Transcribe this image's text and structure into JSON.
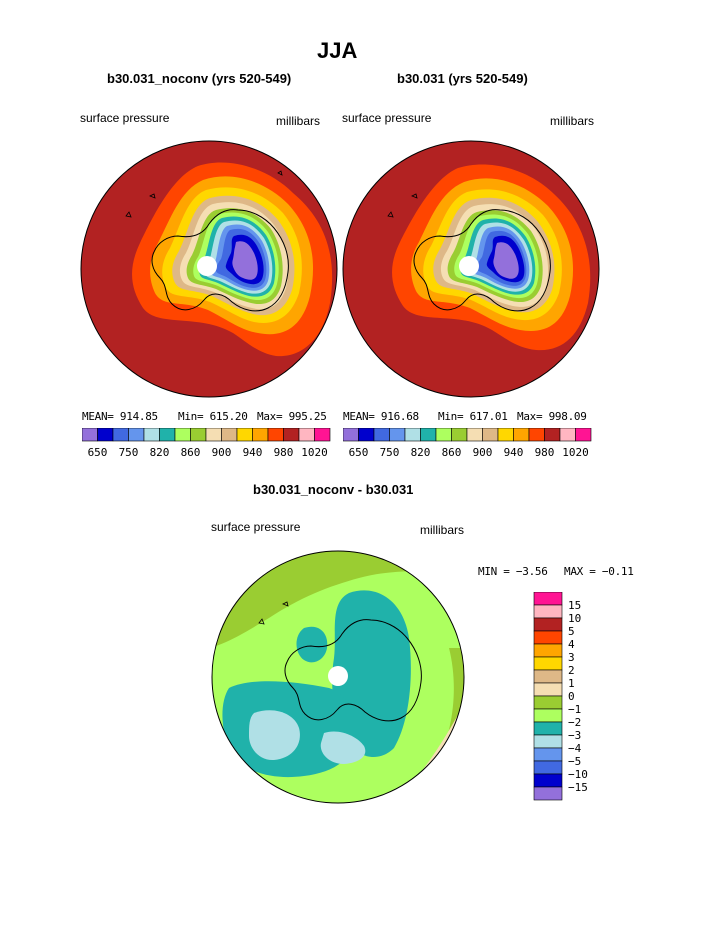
{
  "figure": {
    "title": "JJA"
  },
  "colors": {
    "cmap_full": [
      "#9370DB",
      "#0000CD",
      "#4169E1",
      "#6495ED",
      "#B0E0E6",
      "#20B2AA",
      "#ADFF5F",
      "#9ACD32",
      "#F5DEB3",
      "#DEB887",
      "#FFD700",
      "#FFA500",
      "#FF4500",
      "#B22222",
      "#FFB6C1",
      "#FF1493"
    ],
    "cmap_diff": [
      "#9370DB",
      "#0000CD",
      "#4169E1",
      "#6495ED",
      "#B0E0E6",
      "#20B2AA",
      "#ADFF5F",
      "#9ACD32",
      "#F5DEB3",
      "#DEB887",
      "#FFD700",
      "#FFA500",
      "#FF4500",
      "#B22222",
      "#FFB6C1",
      "#FF1493"
    ],
    "coast": "#000000",
    "pole": "#ffffff"
  },
  "chart_data": [
    {
      "type": "heatmap",
      "projection": "south-polar-stereographic",
      "title": "b30.031_noconv (yrs 520-549)",
      "left_label": "surface pressure",
      "right_label": "millibars",
      "stats": {
        "mean": "MEAN= 914.85",
        "min": "Min= 615.20",
        "max": "Max= 995.25"
      },
      "levels": [
        650,
        750,
        820,
        860,
        900,
        940,
        980,
        1020
      ],
      "colorbar_labels": [
        "650",
        "750",
        "820",
        "860",
        "900",
        "940",
        "980",
        "1020"
      ]
    },
    {
      "type": "heatmap",
      "projection": "south-polar-stereographic",
      "title": "b30.031 (yrs 520-549)",
      "left_label": "surface pressure",
      "right_label": "millibars",
      "stats": {
        "mean": "MEAN= 916.68",
        "min": "Min= 617.01",
        "max": "Max= 998.09"
      },
      "levels": [
        650,
        750,
        820,
        860,
        900,
        940,
        980,
        1020
      ],
      "colorbar_labels": [
        "650",
        "750",
        "820",
        "860",
        "900",
        "940",
        "980",
        "1020"
      ]
    },
    {
      "type": "heatmap",
      "projection": "south-polar-stereographic",
      "title": "b30.031_noconv - b30.031",
      "left_label": "surface pressure",
      "right_label": "millibars",
      "stats": {
        "min": "MIN =  −3.56",
        "max": "MAX =  −0.11"
      },
      "levels": [
        15,
        10,
        5,
        4,
        3,
        2,
        1,
        0,
        -1,
        -2,
        -3,
        -4,
        -5,
        -10,
        -15
      ],
      "colorbar_labels": [
        "15",
        "10",
        "5",
        "4",
        "3",
        "2",
        "1",
        "0",
        "−1",
        "−2",
        "−3",
        "−4",
        "−5",
        "−10",
        "−15"
      ]
    }
  ]
}
